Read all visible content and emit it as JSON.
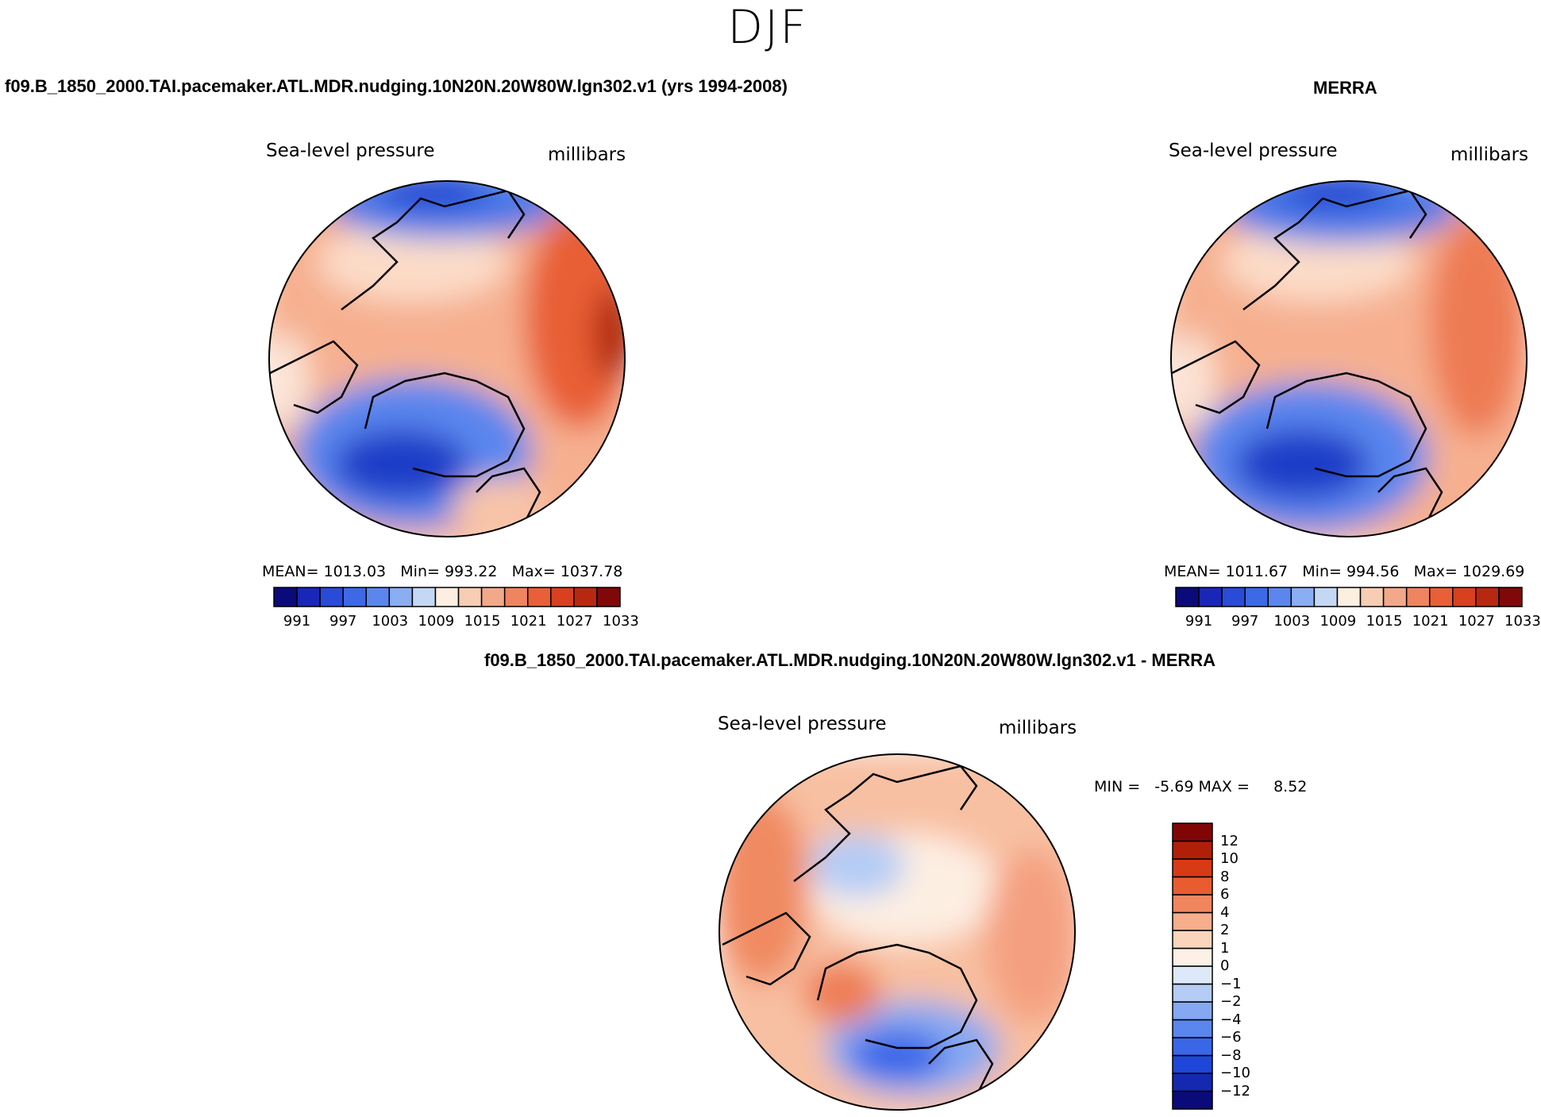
{
  "figure": {
    "season": "DJF",
    "model_title": "f09.B_1850_2000.TAI.pacemaker.ATL.MDR.nudging.10N20N.20W80W.lgn302.v1 (yrs 1994-2008)",
    "obs_title": "MERRA",
    "diff_title": "f09.B_1850_2000.TAI.pacemaker.ATL.MDR.nudging.10N20N.20W80W.lgn302.v1 - MERRA"
  },
  "colors": {
    "abs_palette": [
      "#0a0a7a",
      "#1a26b8",
      "#2a4ad8",
      "#3d68e6",
      "#5a86ee",
      "#8aaef2",
      "#c4d8f6",
      "#fdeee2",
      "#f7cdb4",
      "#f2a98a",
      "#ee8460",
      "#e85f38",
      "#d84020",
      "#b82810",
      "#800808"
    ],
    "diff_palette": [
      "#0a0a7a",
      "#1428b0",
      "#1e46d8",
      "#3a66e8",
      "#5a86ee",
      "#86a8f2",
      "#b4ccf6",
      "#dde8f8",
      "#fdf0e4",
      "#fbd4bc",
      "#f6ae8c",
      "#f0865e",
      "#e85c30",
      "#d83a16",
      "#b02008",
      "#800606"
    ]
  },
  "chart_data": [
    {
      "type": "heatmap",
      "panel": "model",
      "title": "Sea-level pressure",
      "units": "millibars",
      "mean_label": "MEAN=",
      "mean": "1013.03",
      "min_label": "Min=",
      "min": "993.22",
      "max_label": "Max=",
      "max": "1037.78",
      "colorbar_levels": [
        991,
        994,
        997,
        1000,
        1003,
        1006,
        1009,
        1012,
        1015,
        1018,
        1021,
        1024,
        1027,
        1030,
        1033
      ],
      "colorbar_tick_labels": [
        "991",
        "997",
        "1003",
        "1009",
        "1015",
        "1021",
        "1027",
        "1033"
      ]
    },
    {
      "type": "heatmap",
      "panel": "obs",
      "title": "Sea-level pressure",
      "units": "millibars",
      "mean_label": "MEAN=",
      "mean": "1011.67",
      "min_label": "Min=",
      "min": "994.56",
      "max_label": "Max=",
      "max": "1029.69",
      "colorbar_levels": [
        991,
        994,
        997,
        1000,
        1003,
        1006,
        1009,
        1012,
        1015,
        1018,
        1021,
        1024,
        1027,
        1030,
        1033
      ],
      "colorbar_tick_labels": [
        "991",
        "997",
        "1003",
        "1009",
        "1015",
        "1021",
        "1027",
        "1033"
      ]
    },
    {
      "type": "heatmap",
      "panel": "difference",
      "title": "Sea-level pressure",
      "units": "millibars",
      "min_label": "MIN =",
      "min": "-5.69",
      "max_label": "MAX =",
      "max": "8.52",
      "colorbar_tick_labels": [
        "12",
        "10",
        "8",
        "6",
        "4",
        "2",
        "1",
        "0",
        "−1",
        "−2",
        "−4",
        "−6",
        "−8",
        "−10",
        "−12"
      ]
    }
  ]
}
